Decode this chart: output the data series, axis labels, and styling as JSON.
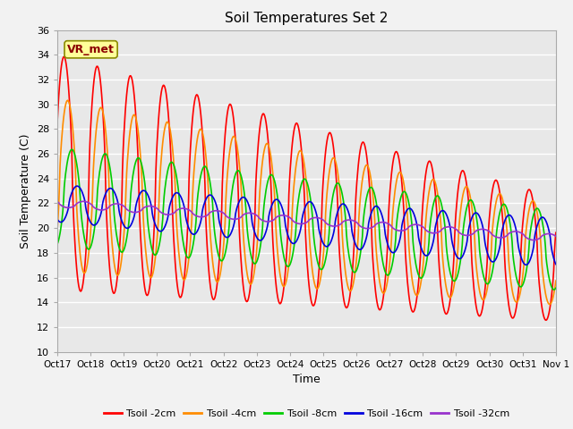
{
  "title": "Soil Temperatures Set 2",
  "xlabel": "Time",
  "ylabel": "Soil Temperature (C)",
  "ylim": [
    10,
    36
  ],
  "yticks": [
    10,
    12,
    14,
    16,
    18,
    20,
    22,
    24,
    26,
    28,
    30,
    32,
    34,
    36
  ],
  "xtick_labels": [
    "Oct 17",
    "Oct 18",
    "Oct 19",
    "Oct 20",
    "Oct 21",
    "Oct 22",
    "Oct 23",
    "Oct 24",
    "Oct 25",
    "Oct 26",
    "Oct 27",
    "Oct 28",
    "Oct 29",
    "Oct 30",
    "Oct 31",
    "Nov 1"
  ],
  "series": [
    {
      "label": "Tsoil -2cm",
      "color": "#FF0000",
      "linewidth": 1.2
    },
    {
      "label": "Tsoil -4cm",
      "color": "#FF8C00",
      "linewidth": 1.2
    },
    {
      "label": "Tsoil -8cm",
      "color": "#00CC00",
      "linewidth": 1.2
    },
    {
      "label": "Tsoil -16cm",
      "color": "#0000DD",
      "linewidth": 1.2
    },
    {
      "label": "Tsoil -32cm",
      "color": "#9933CC",
      "linewidth": 1.2
    }
  ],
  "annotation_text": "VR_met",
  "bg_color": "#E8E8E8",
  "fig_color": "#F2F2F2",
  "grid_color": "#FFFFFF",
  "n_days": 15,
  "pts_per_day": 48,
  "series_params": {
    "t2": {
      "mean0": 24.5,
      "mean1": 17.5,
      "amp0": 9.5,
      "amp1": 5.0,
      "phase": 0.3
    },
    "t4": {
      "mean0": 23.5,
      "mean1": 17.8,
      "amp0": 7.0,
      "amp1": 4.0,
      "phase": -0.4
    },
    "t8": {
      "mean0": 22.5,
      "mean1": 18.2,
      "amp0": 4.0,
      "amp1": 3.2,
      "phase": -1.2
    },
    "t16": {
      "mean0": 22.0,
      "mean1": 18.8,
      "amp0": 1.5,
      "amp1": 2.0,
      "phase": -2.2
    },
    "t32": {
      "mean0": 22.0,
      "mean1": 19.2,
      "amp0": 0.3,
      "amp1": 0.3,
      "phase": -3.5
    }
  }
}
